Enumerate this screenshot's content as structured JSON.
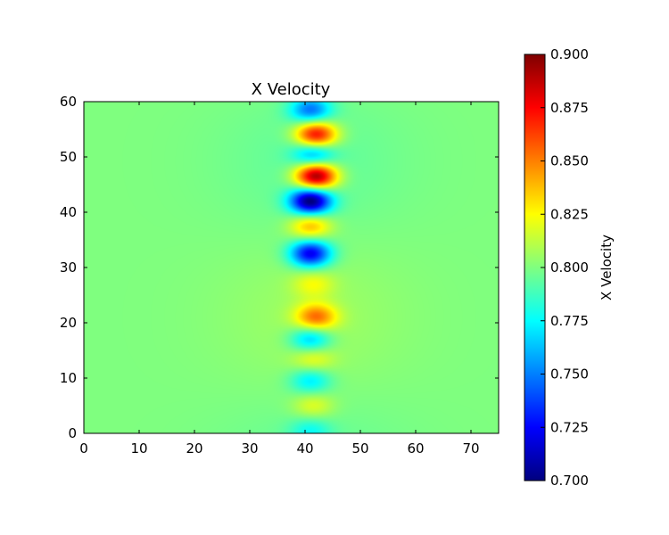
{
  "chart_data": {
    "type": "heatmap",
    "title": "X Velocity",
    "xlabel": "",
    "ylabel": "",
    "xlim": [
      0,
      75
    ],
    "ylim": [
      0,
      60
    ],
    "x_ticks": [
      0,
      10,
      20,
      30,
      40,
      50,
      60,
      70
    ],
    "y_ticks": [
      0,
      10,
      20,
      30,
      40,
      50,
      60
    ],
    "colormap": "jet",
    "background_value": 0.8,
    "field_center_x": 41.5,
    "features": [
      {
        "x": 41.0,
        "y": 0.5,
        "value": 0.78
      },
      {
        "x": 41.5,
        "y": 5.0,
        "value": 0.82
      },
      {
        "x": 41.0,
        "y": 9.5,
        "value": 0.77
      },
      {
        "x": 41.5,
        "y": 13.5,
        "value": 0.82
      },
      {
        "x": 41.0,
        "y": 17.0,
        "value": 0.76
      },
      {
        "x": 42.0,
        "y": 21.0,
        "value": 0.85
      },
      {
        "x": 41.5,
        "y": 27.0,
        "value": 0.82
      },
      {
        "x": 41.0,
        "y": 32.5,
        "value": 0.72
      },
      {
        "x": 41.0,
        "y": 37.5,
        "value": 0.84
      },
      {
        "x": 41.0,
        "y": 42.0,
        "value": 0.7
      },
      {
        "x": 42.0,
        "y": 46.5,
        "value": 0.9
      },
      {
        "x": 41.5,
        "y": 50.5,
        "value": 0.76
      },
      {
        "x": 42.0,
        "y": 54.0,
        "value": 0.88
      },
      {
        "x": 41.0,
        "y": 58.5,
        "value": 0.75
      }
    ],
    "colorbar": {
      "label": "X Velocity",
      "range": [
        0.7,
        0.9
      ],
      "ticks": [
        "0.700",
        "0.725",
        "0.750",
        "0.775",
        "0.800",
        "0.825",
        "0.850",
        "0.875",
        "0.900"
      ]
    }
  }
}
